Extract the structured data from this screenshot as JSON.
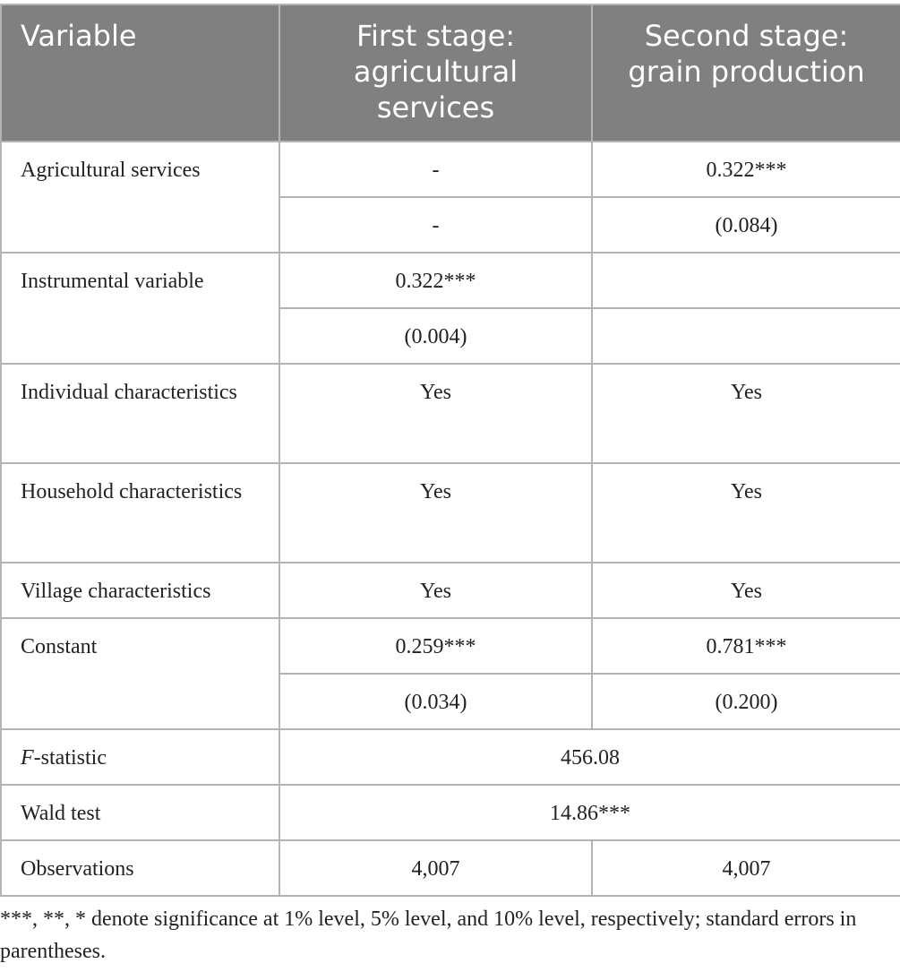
{
  "header": {
    "variable": "Variable",
    "col1": "First stage:\nagricultural\nservices",
    "col2": "Second stage:\ngrain production"
  },
  "rows": {
    "agri_services": {
      "label": "Agricultural services",
      "c1": "-",
      "c2": "0.322***",
      "c1_se": "-",
      "c2_se": "(0.084)"
    },
    "instrument": {
      "label": "Instrumental variable",
      "c1": "0.322***",
      "c2": "",
      "c1_se": "(0.004)",
      "c2_se": ""
    },
    "individual": {
      "label": "Individual characteristics",
      "c1": "Yes",
      "c2": "Yes"
    },
    "household": {
      "label": "Household characteristics",
      "c1": "Yes",
      "c2": "Yes"
    },
    "village": {
      "label": "Village characteristics",
      "c1": "Yes",
      "c2": "Yes"
    },
    "constant": {
      "label": "Constant",
      "c1": "0.259***",
      "c2": "0.781***",
      "c1_se": "(0.034)",
      "c2_se": "(0.200)"
    },
    "fstat": {
      "label_italic": "F",
      "label_rest": "-statistic",
      "value": "456.08"
    },
    "wald": {
      "label": "Wald test",
      "value": "14.86***"
    },
    "observations": {
      "label": "Observations",
      "c1": "4,007",
      "c2": "4,007"
    }
  },
  "footnote": "***, **, * denote significance at 1% level, 5% level, and 10% level, respectively; standard errors in parentheses.",
  "colors": {
    "header_bg": "#808080",
    "border": "#b4b4b4"
  }
}
